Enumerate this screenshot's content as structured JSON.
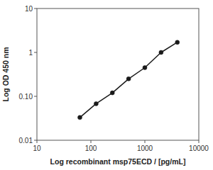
{
  "chart_data": {
    "type": "line",
    "xlabel": "Log recombinant msp75ECD / [pg/mL]",
    "ylabel": "Log OD 450 nm",
    "x": [
      62.5,
      125,
      250,
      500,
      1000,
      2000,
      4000
    ],
    "values": [
      0.033,
      0.068,
      0.12,
      0.25,
      0.45,
      1.0,
      1.7
    ],
    "color": "#1a1a1a",
    "marker": "circle",
    "log": true,
    "xlim": [
      10,
      10000
    ],
    "ylim": [
      0.01,
      10
    ],
    "xticks": [
      10,
      100,
      1000,
      10000
    ],
    "yticks": [
      0.01,
      {
        "value": 0.1,
        "label": "0.10"
      },
      1,
      10
    ]
  }
}
